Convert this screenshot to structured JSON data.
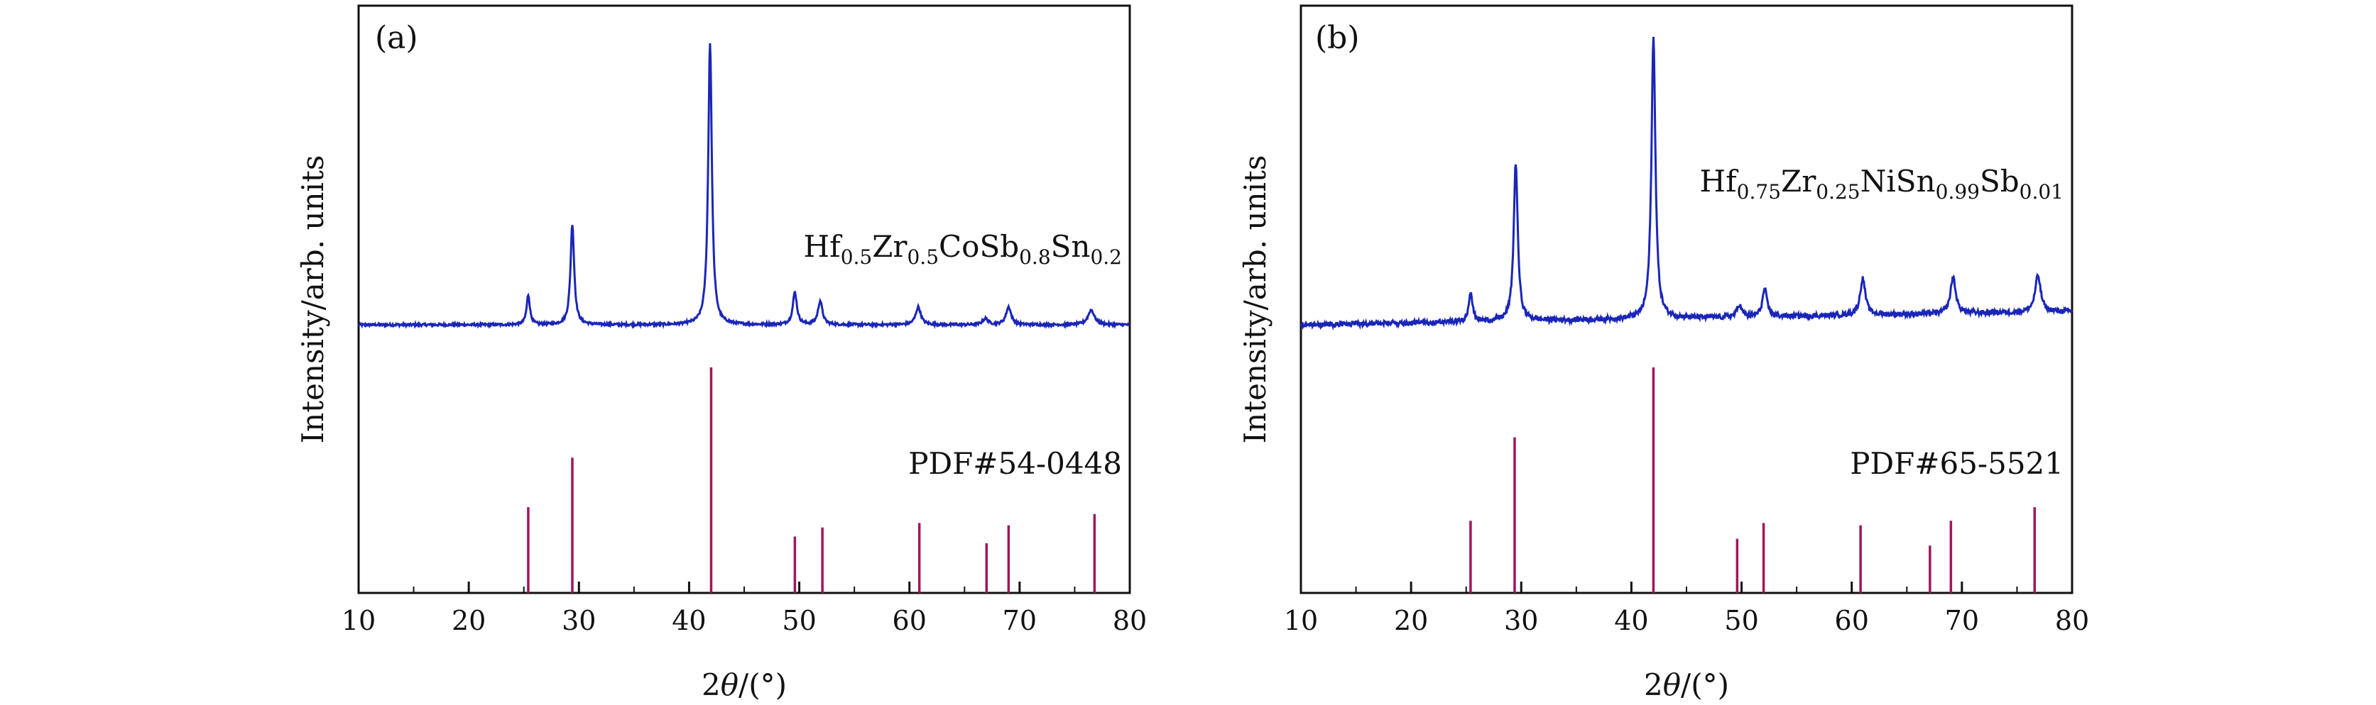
{
  "colors": {
    "pattern": "#1a26b8",
    "reference": "#a0175a",
    "axes": "#111111"
  },
  "chart_data": [
    {
      "type": "line",
      "panel_label": "(a)",
      "title": "",
      "xlabel_main": "2",
      "xlabel_theta": "θ",
      "xlabel_unit": "/(°)",
      "ylabel": "Intensity/arb. units",
      "xlim": [
        10,
        80
      ],
      "xticks": [
        "10",
        "20",
        "30",
        "40",
        "50",
        "60",
        "70",
        "80"
      ],
      "sample_label": {
        "b1": "Hf",
        "s1": "0.5",
        "b2": "Zr",
        "s2": "0.5",
        "b3": "CoSb",
        "s3": "0.8",
        "b4": "Sn",
        "s4": "0.2"
      },
      "reference_label": "PDF#54-0448",
      "baseline": 0.03,
      "peaks": [
        {
          "x": 25.4,
          "h": 0.1,
          "w": 0.18
        },
        {
          "x": 29.4,
          "h": 0.34,
          "w": 0.2
        },
        {
          "x": 41.9,
          "h": 0.95,
          "w": 0.2
        },
        {
          "x": 49.6,
          "h": 0.11,
          "w": 0.22
        },
        {
          "x": 51.9,
          "h": 0.08,
          "w": 0.24
        },
        {
          "x": 60.8,
          "h": 0.06,
          "w": 0.28
        },
        {
          "x": 66.9,
          "h": 0.02,
          "w": 0.3
        },
        {
          "x": 69.0,
          "h": 0.06,
          "w": 0.28
        },
        {
          "x": 76.5,
          "h": 0.05,
          "w": 0.35
        }
      ],
      "reference_lines": [
        {
          "x": 25.4,
          "rel": 0.38
        },
        {
          "x": 29.4,
          "rel": 0.6
        },
        {
          "x": 42.0,
          "rel": 1.0
        },
        {
          "x": 49.6,
          "rel": 0.25
        },
        {
          "x": 52.1,
          "rel": 0.29
        },
        {
          "x": 60.9,
          "rel": 0.31
        },
        {
          "x": 67.0,
          "rel": 0.22
        },
        {
          "x": 69.0,
          "rel": 0.3
        },
        {
          "x": 76.8,
          "rel": 0.35
        }
      ]
    },
    {
      "type": "line",
      "panel_label": "(b)",
      "title": "",
      "xlabel_main": "2",
      "xlabel_theta": "θ",
      "xlabel_unit": "/(°)",
      "ylabel": "Intensity/arb. units",
      "xlim": [
        10,
        80
      ],
      "xticks": [
        "10",
        "20",
        "30",
        "40",
        "50",
        "60",
        "70",
        "80"
      ],
      "sample_label": {
        "b1": "Hf",
        "s1": "0.75",
        "b2": "Zr",
        "s2": "0.25",
        "b3": "NiSn",
        "s3": "0.99",
        "b4": "Sb",
        "s4": "0.01"
      },
      "reference_label": "PDF#65-5521",
      "baseline": 0.03,
      "peaks": [
        {
          "x": 25.4,
          "h": 0.1,
          "w": 0.2
        },
        {
          "x": 29.5,
          "h": 0.52,
          "w": 0.22
        },
        {
          "x": 42.0,
          "h": 0.92,
          "w": 0.22
        },
        {
          "x": 49.8,
          "h": 0.04,
          "w": 0.25
        },
        {
          "x": 52.1,
          "h": 0.09,
          "w": 0.25
        },
        {
          "x": 61.0,
          "h": 0.12,
          "w": 0.28
        },
        {
          "x": 69.2,
          "h": 0.12,
          "w": 0.28
        },
        {
          "x": 76.9,
          "h": 0.12,
          "w": 0.3
        }
      ],
      "reference_lines": [
        {
          "x": 25.4,
          "rel": 0.32
        },
        {
          "x": 29.4,
          "rel": 0.69
        },
        {
          "x": 42.0,
          "rel": 1.0
        },
        {
          "x": 49.6,
          "rel": 0.24
        },
        {
          "x": 52.0,
          "rel": 0.31
        },
        {
          "x": 60.8,
          "rel": 0.3
        },
        {
          "x": 67.1,
          "rel": 0.21
        },
        {
          "x": 69.0,
          "rel": 0.32
        },
        {
          "x": 76.6,
          "rel": 0.38
        }
      ]
    }
  ]
}
